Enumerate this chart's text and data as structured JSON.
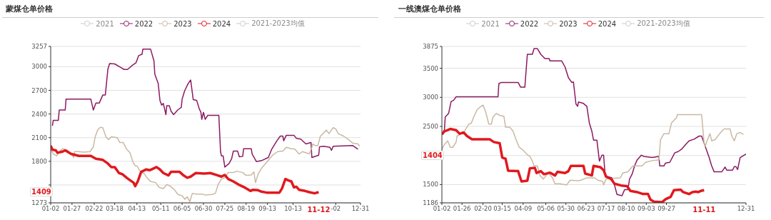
{
  "chart_data": [
    {
      "type": "line",
      "title": "蒙煤仓单价格",
      "xlim": [
        "--01-02",
        "--12-31"
      ],
      "xticks": [
        {
          "value": "--01-02",
          "label": "01-02"
        },
        {
          "value": "--01-27",
          "label": "01-27"
        },
        {
          "value": "--02-22",
          "label": "02-22"
        },
        {
          "value": "--03-18",
          "label": "03-18"
        },
        {
          "value": "--04-13",
          "label": "04-13"
        },
        {
          "value": "--05-11",
          "label": "05-11"
        },
        {
          "value": "--06-05",
          "label": "06-05"
        },
        {
          "value": "--06-30",
          "label": "06-30"
        },
        {
          "value": "--07-25",
          "label": "07-25"
        },
        {
          "value": "--08-19",
          "label": "08-19"
        },
        {
          "value": "--09-13",
          "label": "09-13"
        },
        {
          "value": "--10-13",
          "label": "10-13"
        },
        {
          "value": "--12-02",
          "label": "-02"
        },
        {
          "value": "--12-31",
          "label": "12-31"
        }
      ],
      "ylim": [
        1273,
        3257
      ],
      "yticks": [
        1273,
        {
          "value": 1500,
          "label": null
        },
        1800,
        2100,
        2400,
        2700,
        3000,
        3257
      ],
      "grid": "y",
      "legend": "top",
      "marker": "none",
      "line_style": "solid",
      "annotations": [
        "11-12",
        "1409"
      ],
      "series": [
        {
          "name": "2021",
          "color": "#cccccc"
        },
        {
          "name": "2022",
          "color": "#8b1a62",
          "x": [
            "--01-04",
            "--01-05",
            "--01-11",
            "--01-12",
            "--01-19",
            "--01-20",
            "--02-18",
            "--02-21",
            "--02-24",
            "--02-28",
            "--03-04",
            "--03-07",
            "--03-10",
            "--03-12",
            "--03-18",
            "--03-25",
            "--03-29",
            "--04-02",
            "--04-08",
            "--04-12",
            "--04-15",
            "--04-19",
            "--04-20",
            "--04-29",
            "--05-03",
            "--05-04",
            "--05-08",
            "--05-10",
            "--05-12",
            "--05-14",
            "--05-17",
            "--05-18",
            "--05-21",
            "--05-23",
            "--05-26",
            "--05-31",
            "--06-04",
            "--06-05",
            "--06-08",
            "--06-12",
            "--06-15",
            "--06-18",
            "--06-22",
            "--06-25",
            "--06-27",
            "--06-28",
            "--06-30",
            "--07-02",
            "--07-05",
            "--07-18",
            "--07-20",
            "--07-21",
            "--07-23",
            "--07-25",
            "--07-30",
            "--08-02",
            "--08-04",
            "--08-09",
            "--08-11",
            "--08-15",
            "--08-16",
            "--08-25",
            "--08-26",
            "--08-31",
            "--09-06",
            "--09-14",
            "--09-18",
            "--09-24",
            "--09-28",
            "--10-01",
            "--10-02",
            "--10-05",
            "--10-14",
            "--10-17",
            "--10-22",
            "--10-28",
            "--11-03",
            "--11-04",
            "--11-12",
            "--11-13",
            "--11-18",
            "--11-25",
            "--11-27",
            "--11-29",
            "--12-22",
            "--12-28"
          ],
          "values": [
            2250,
            2320,
            2320,
            2450,
            2450,
            2590,
            2590,
            2450,
            2540,
            2540,
            2640,
            2640,
            2967,
            3040,
            3035,
            2990,
            2965,
            2965,
            3020,
            3050,
            3140,
            3157,
            3224,
            3224,
            3073,
            2906,
            2785,
            2574,
            2513,
            2534,
            2392,
            2504,
            2504,
            2437,
            2392,
            2453,
            2483,
            2589,
            2695,
            2785,
            2831,
            2583,
            2574,
            2468,
            2422,
            2332,
            2422,
            2332,
            2383,
            2383,
            1923,
            1869,
            1869,
            1727,
            1772,
            1833,
            1930,
            1930,
            1857,
            1863,
            1960,
            1960,
            1893,
            1797,
            1809,
            1848,
            1954,
            2060,
            2120,
            2120,
            2060,
            2130,
            2130,
            2090,
            2081,
            2020,
            2038,
            1848,
            1878,
            1984,
            1990,
            1978,
            1939,
            1990,
            1999,
            1954
          ]
        },
        {
          "name": "2023",
          "color": "#c9b9a3",
          "x": [
            "--01-02",
            "--01-05",
            "--01-09",
            "--01-12",
            "--01-16",
            "--01-22",
            "--01-26",
            "--01-29",
            "--01-30",
            "--02-04",
            "--02-10",
            "--02-17",
            "--02-21",
            "--02-23",
            "--02-26",
            "--03-01",
            "--03-04",
            "--03-08",
            "--03-11",
            "--03-14",
            "--03-21",
            "--03-24",
            "--03-28",
            "--04-01",
            "--04-05",
            "--04-08",
            "--04-11",
            "--04-13",
            "--04-18",
            "--04-21",
            "--04-25",
            "--04-29",
            "--05-05",
            "--05-09",
            "--05-14",
            "--05-18",
            "--05-22",
            "--05-27",
            "--05-31",
            "--06-05",
            "--06-08",
            "--06-11",
            "--06-14",
            "--06-17",
            "--06-21",
            "--06-28",
            "--07-02",
            "--07-10",
            "--07-14",
            "--07-17",
            "--07-21",
            "--07-25",
            "--07-29",
            "--08-04",
            "--08-08",
            "--08-15",
            "--08-19",
            "--08-25",
            "--08-28",
            "--08-30",
            "--09-02",
            "--09-06",
            "--09-12",
            "--09-19",
            "--09-25",
            "--10-01",
            "--10-05",
            "--10-11",
            "--10-15",
            "--10-20",
            "--10-24",
            "--11-01",
            "--11-04",
            "--11-05",
            "--11-08",
            "--11-11",
            "--11-14",
            "--11-17",
            "--11-21",
            "--11-24",
            "--11-29",
            "--12-02",
            "--12-05",
            "--12-11",
            "--12-17",
            "--12-22",
            "--12-28",
            "--12-30"
          ],
          "values": [
            1954,
            1893,
            1869,
            1923,
            1960,
            1939,
            1893,
            1848,
            1923,
            1923,
            1917,
            1923,
            1984,
            2105,
            2196,
            2232,
            2226,
            2105,
            2075,
            2111,
            2099,
            2038,
            2038,
            1954,
            1908,
            1802,
            1742,
            1742,
            1651,
            1651,
            1591,
            1545,
            1530,
            1470,
            1455,
            1506,
            1485,
            1440,
            1379,
            1364,
            1319,
            1349,
            1288,
            1394,
            1385,
            1385,
            1373,
            1379,
            1394,
            1500,
            1576,
            1591,
            1657,
            1657,
            1675,
            1657,
            1621,
            1627,
            1666,
            1530,
            1636,
            1712,
            1788,
            1878,
            1923,
            1930,
            1978,
            1960,
            1954,
            1893,
            1923,
            1893,
            1975,
            2020,
            1999,
            1999,
            2120,
            2151,
            2196,
            2151,
            2226,
            2211,
            2151,
            2120,
            2075,
            2030,
            2020,
            1990
          ]
        },
        {
          "name": "2024",
          "color": "#e0191e",
          "x": [
            "--01-02",
            "--01-04",
            "--01-08",
            "--01-10",
            "--01-16",
            "--01-19",
            "--01-26",
            "--02-04",
            "--02-18",
            "--02-24",
            "--03-04",
            "--03-10",
            "--03-14",
            "--03-18",
            "--03-23",
            "--03-27",
            "--04-01",
            "--04-05",
            "--04-09",
            "--04-11",
            "--04-14",
            "--04-18",
            "--04-24",
            "--04-28",
            "--05-06",
            "--05-10",
            "--05-14",
            "--05-20",
            "--05-23",
            "--06-02",
            "--06-06",
            "--06-11",
            "--06-15",
            "--06-21",
            "--07-01",
            "--07-08",
            "--07-15",
            "--07-21",
            "--07-25",
            "--07-29",
            "--08-04",
            "--08-11",
            "--08-18",
            "--08-24",
            "--08-27",
            "--09-02",
            "--09-06",
            "--09-12",
            "--09-27",
            "--09-30",
            "--10-04",
            "--10-07",
            "--10-11",
            "--10-14",
            "--10-17",
            "--10-20",
            "--10-27",
            "--11-01",
            "--11-07",
            "--11-12"
          ],
          "values": [
            1999,
            1948,
            1939,
            1908,
            1923,
            1939,
            1893,
            1869,
            1869,
            1833,
            1818,
            1772,
            1727,
            1727,
            1651,
            1636,
            1591,
            1560,
            1530,
            1485,
            1545,
            1666,
            1697,
            1687,
            1727,
            1697,
            1651,
            1621,
            1666,
            1666,
            1627,
            1591,
            1606,
            1651,
            1645,
            1651,
            1627,
            1606,
            1627,
            1576,
            1545,
            1500,
            1464,
            1424,
            1439,
            1433,
            1415,
            1403,
            1403,
            1455,
            1576,
            1560,
            1545,
            1470,
            1476,
            1439,
            1424,
            1409,
            1394,
            1409
          ]
        },
        {
          "name": "2021-2023均值",
          "color": "#cccccc"
        }
      ]
    },
    {
      "type": "line",
      "title": "一线澳煤仓单价格",
      "xlim": [
        "--01-02",
        "--12-31"
      ],
      "xticks": [
        {
          "value": "--01-02",
          "label": "01-02"
        },
        {
          "value": "--01-26",
          "label": "01-26"
        },
        {
          "value": "--02-20",
          "label": "02-20"
        },
        {
          "value": "--03-15",
          "label": "03-15"
        },
        {
          "value": "--04-09",
          "label": "04-09"
        },
        {
          "value": "--05-06",
          "label": "05-06"
        },
        {
          "value": "--05-30",
          "label": "05-30"
        },
        {
          "value": "--06-23",
          "label": "06-23"
        },
        {
          "value": "--07-17",
          "label": "07-17"
        },
        {
          "value": "--08-10",
          "label": "08-10"
        },
        {
          "value": "--09-03",
          "label": "09-03"
        },
        {
          "value": "--09-27",
          "label": "09-27"
        },
        {
          "value": "--12-31",
          "label": "12-31"
        }
      ],
      "ylim": [
        1186,
        3875
      ],
      "yticks": [
        1186,
        1500,
        {
          "value": 2000,
          "label": null
        },
        2500,
        3000,
        3500,
        3875
      ],
      "grid": "y",
      "legend": "top",
      "marker": "none",
      "line_style": "solid",
      "annotations": [
        "11-11",
        "1404"
      ],
      "series": [
        {
          "name": "2021",
          "color": "#cccccc"
        },
        {
          "name": "2022",
          "color": "#8b1a62",
          "x": [
            "--01-02",
            "--01-05",
            "--01-06",
            "--01-10",
            "--01-13",
            "--01-16",
            "--01-19",
            "--03-10",
            "--03-11",
            "--03-14",
            "--04-03",
            "--04-06",
            "--04-11",
            "--04-14",
            "--04-20",
            "--04-22",
            "--04-26",
            "--04-30",
            "--05-05",
            "--05-10",
            "--05-11",
            "--05-25",
            "--05-29",
            "--06-02",
            "--06-06",
            "--06-08",
            "--06-11",
            "--06-13",
            "--06-14",
            "--06-20",
            "--06-24",
            "--06-27",
            "--06-30",
            "--07-02",
            "--07-06",
            "--07-09",
            "--07-12",
            "--07-14",
            "--07-16",
            "--07-19",
            "--07-24",
            "--07-27",
            "--07-30",
            "--08-05",
            "--08-08",
            "--08-12",
            "--08-14",
            "--08-17",
            "--08-20",
            "--08-23",
            "--08-28",
            "--08-31",
            "--09-10",
            "--09-18",
            "--09-19",
            "--09-24",
            "--09-26",
            "--10-01",
            "--10-07",
            "--10-11",
            "--10-15",
            "--10-20",
            "--10-24",
            "--10-30",
            "--11-05",
            "--11-08",
            "--11-11",
            "--11-14",
            "--11-17",
            "--11-20",
            "--11-23",
            "--12-02",
            "--12-06",
            "--12-08",
            "--12-15",
            "--12-17",
            "--12-19",
            "--12-21",
            "--12-24",
            "--12-31"
          ],
          "values": [
            2375,
            2436,
            2662,
            2723,
            2928,
            2949,
            3010,
            3010,
            3236,
            3256,
            3256,
            3174,
            3174,
            3740,
            3740,
            3838,
            3838,
            3740,
            3666,
            3666,
            3625,
            3625,
            3522,
            3338,
            3256,
            3264,
            2887,
            2846,
            2920,
            2895,
            2846,
            2559,
            2416,
            2264,
            2264,
            1903,
            2006,
            2006,
            1637,
            1637,
            1617,
            1494,
            1330,
            1309,
            1412,
            1412,
            1596,
            1678,
            1821,
            1924,
            2006,
            1985,
            1965,
            1985,
            1821,
            1821,
            1871,
            1883,
            2047,
            2067,
            2108,
            2190,
            2252,
            2280,
            2334,
            2334,
            2211,
            2088,
            1965,
            1821,
            1719,
            1719,
            1801,
            1748,
            1748,
            1809,
            1809,
            1760,
            1965,
            2026
          ]
        },
        {
          "name": "2023",
          "color": "#c9b9a3",
          "x": [
            "--01-02",
            "--01-05",
            "--01-09",
            "--01-12",
            "--01-15",
            "--01-19",
            "--01-20",
            "--01-28",
            "--02-03",
            "--02-06",
            "--02-09",
            "--02-13",
            "--02-16",
            "--02-20",
            "--02-23",
            "--02-27",
            "--03-02",
            "--03-04",
            "--03-08",
            "--03-12",
            "--03-17",
            "--03-19",
            "--03-24",
            "--03-28",
            "--03-31",
            "--04-04",
            "--04-09",
            "--04-13",
            "--04-17",
            "--04-20",
            "--04-22",
            "--04-26",
            "--04-29",
            "--05-03",
            "--05-09",
            "--05-14",
            "--05-17",
            "--05-23",
            "--05-31",
            "--06-04",
            "--06-13",
            "--06-17",
            "--06-24",
            "--07-03",
            "--07-07",
            "--07-13",
            "--07-14",
            "--07-17",
            "--07-23",
            "--08-03",
            "--08-06",
            "--08-12",
            "--08-18",
            "--08-29",
            "--09-02",
            "--09-10",
            "--09-17",
            "--09-18",
            "--09-20",
            "--09-24",
            "--09-30",
            "--10-03",
            "--10-09",
            "--10-10",
            "--11-08",
            "--11-11",
            "--11-12",
            "--11-15",
            "--11-18",
            "--11-20",
            "--11-24",
            "--11-28",
            "--12-02",
            "--12-05",
            "--12-12",
            "--12-14",
            "--12-17",
            "--12-20",
            "--12-24",
            "--12-28"
          ],
          "values": [
            2108,
            2190,
            2252,
            2141,
            2141,
            2231,
            2334,
            2395,
            2539,
            2551,
            2662,
            2785,
            2826,
            2867,
            2764,
            2539,
            2539,
            2662,
            2723,
            2690,
            2674,
            2486,
            2486,
            2416,
            2293,
            2149,
            2088,
            2026,
            1985,
            1903,
            1821,
            1821,
            1657,
            1596,
            1699,
            1617,
            1514,
            1514,
            1494,
            1576,
            1567,
            1576,
            1617,
            1617,
            1576,
            1555,
            1494,
            1596,
            1608,
            1617,
            1699,
            1719,
            1821,
            1821,
            1883,
            1912,
            1924,
            1924,
            2272,
            2375,
            2375,
            2559,
            2649,
            2703,
            2703,
            2211,
            2149,
            2272,
            2375,
            2252,
            2272,
            2346,
            2416,
            2457,
            2457,
            2334,
            2252,
            2375,
            2395,
            2362
          ]
        },
        {
          "name": "2024",
          "color": "#e0191e",
          "x": [
            "--01-02",
            "--01-05",
            "--01-09",
            "--01-12",
            "--01-19",
            "--01-23",
            "--01-28",
            "--02-01",
            "--02-07",
            "--02-28",
            "--03-05",
            "--03-12",
            "--03-15",
            "--03-19",
            "--03-22",
            "--04-03",
            "--04-07",
            "--04-14",
            "--04-17",
            "--04-23",
            "--04-25",
            "--04-30",
            "--05-04",
            "--05-11",
            "--05-17",
            "--05-20",
            "--05-29",
            "--06-02",
            "--06-05",
            "--06-20",
            "--06-22",
            "--06-30",
            "--07-02",
            "--07-10",
            "--07-14",
            "--07-17",
            "--07-23",
            "--07-27",
            "--08-04",
            "--08-11",
            "--08-15",
            "--08-23",
            "--08-30",
            "--09-05",
            "--09-08",
            "--09-12",
            "--09-22",
            "--09-26",
            "--10-02",
            "--10-06",
            "--10-14",
            "--10-17",
            "--10-24",
            "--10-28",
            "--11-01",
            "--11-04",
            "--11-07",
            "--11-11"
          ],
          "values": [
            2362,
            2416,
            2436,
            2457,
            2436,
            2375,
            2395,
            2334,
            2280,
            2280,
            2231,
            2211,
            1965,
            1944,
            1739,
            1731,
            1555,
            1567,
            1780,
            1788,
            1699,
            1731,
            1678,
            1706,
            1657,
            1719,
            1699,
            1731,
            1821,
            1821,
            1690,
            1657,
            1821,
            1801,
            1748,
            1637,
            1596,
            1514,
            1485,
            1473,
            1391,
            1371,
            1338,
            1338,
            1240,
            1207,
            1199,
            1248,
            1289,
            1404,
            1412,
            1371,
            1338,
            1371,
            1379,
            1371,
            1391,
            1404
          ]
        },
        {
          "name": "2021-2023均值",
          "color": "#cccccc"
        }
      ]
    }
  ]
}
